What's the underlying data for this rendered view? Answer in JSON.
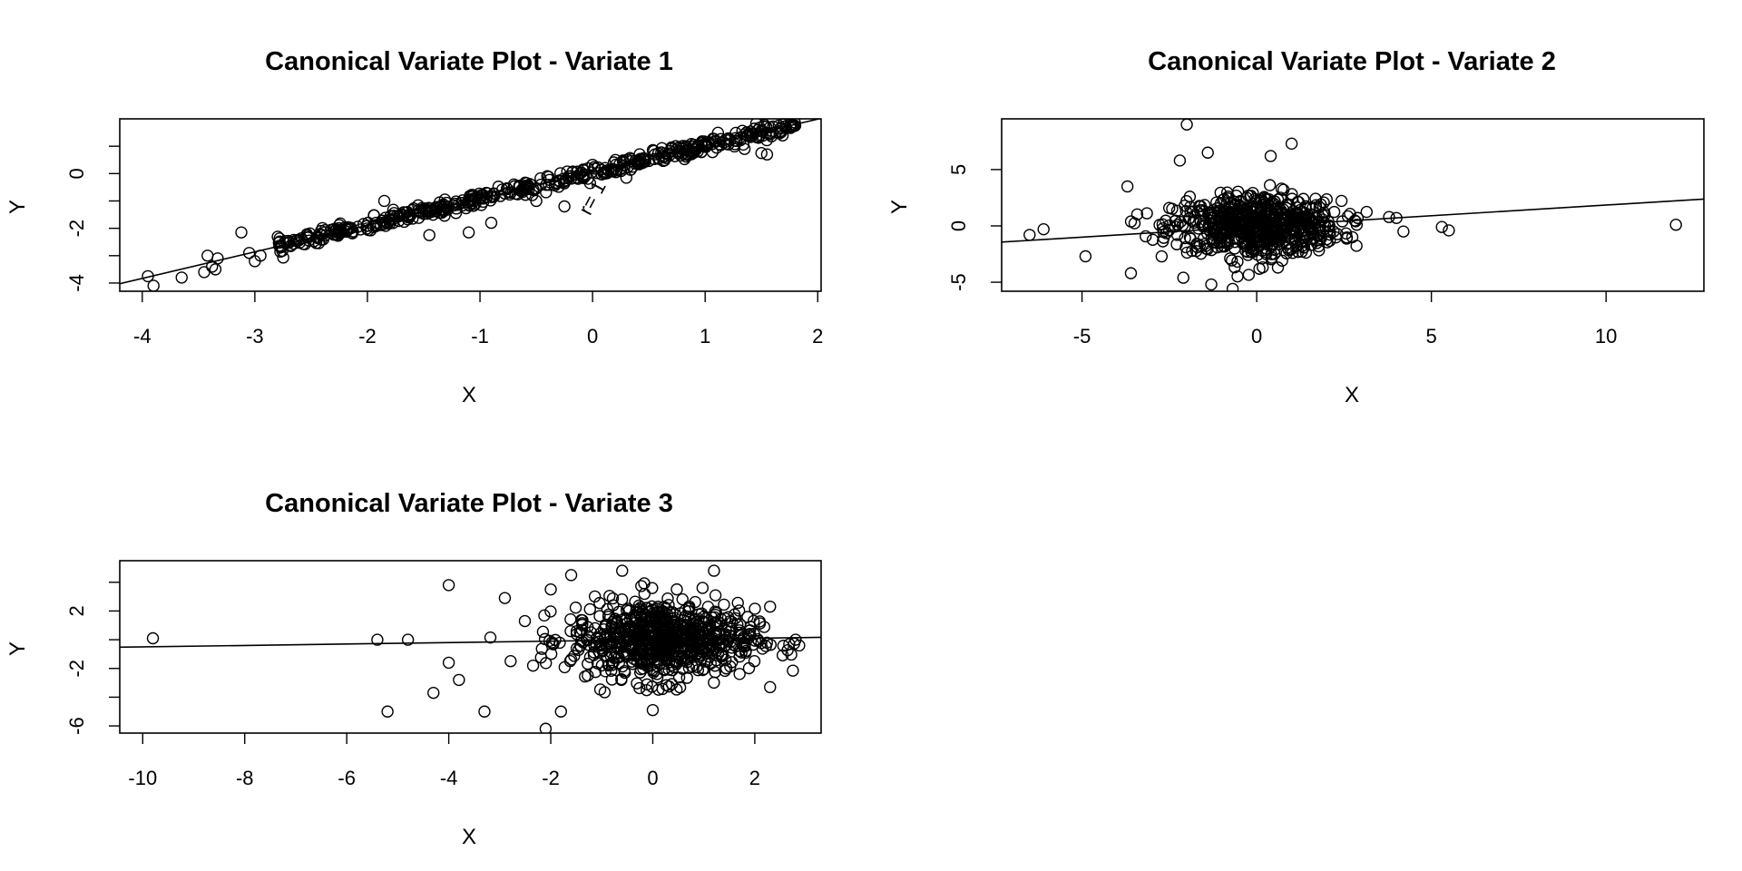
{
  "chart_data": [
    {
      "type": "scatter",
      "title": "Canonical Variate Plot - Variate 1",
      "xlabel": "X",
      "ylabel": "Y",
      "xlim": [
        -4.2,
        2.03
      ],
      "ylim": [
        -4.3,
        2.0
      ],
      "xticks": [
        -4,
        -3,
        -2,
        -1,
        0,
        1,
        2
      ],
      "xtick_labels": [
        "-4",
        "-3",
        "-2",
        "-1",
        "0",
        "1",
        "2"
      ],
      "yticks": [
        -4,
        -3,
        -2,
        -1,
        0,
        1
      ],
      "ytick_labels": [
        "-4",
        "",
        "-2",
        "",
        "0",
        ""
      ],
      "fit_line": {
        "slope": 0.97,
        "intercept": 0.05
      },
      "annotation": {
        "text": "r= 1",
        "x": 0.05,
        "y": -1.0,
        "angle": -62
      },
      "cloud": {
        "x_range": [
          -2.8,
          1.8
        ],
        "slope": 0.97,
        "intercept": 0.05,
        "spread": 0.13,
        "count": 520
      },
      "points": [
        {
          "x": -3.95,
          "y": -3.75
        },
        {
          "x": -3.9,
          "y": -4.1
        },
        {
          "x": -3.65,
          "y": -3.8
        },
        {
          "x": -3.45,
          "y": -3.6
        },
        {
          "x": -3.42,
          "y": -3.0
        },
        {
          "x": -3.38,
          "y": -3.4
        },
        {
          "x": -3.35,
          "y": -3.5
        },
        {
          "x": -3.33,
          "y": -3.1
        },
        {
          "x": -3.12,
          "y": -2.15
        },
        {
          "x": -3.05,
          "y": -2.9
        },
        {
          "x": -3.0,
          "y": -3.2
        },
        {
          "x": -2.95,
          "y": -3.0
        },
        {
          "x": -1.85,
          "y": -1.0
        },
        {
          "x": -1.45,
          "y": -2.25
        },
        {
          "x": -1.1,
          "y": -2.15
        },
        {
          "x": -0.9,
          "y": -1.8
        },
        {
          "x": -0.5,
          "y": -1.0
        },
        {
          "x": -0.25,
          "y": -1.2
        },
        {
          "x": 0.3,
          "y": -0.15
        },
        {
          "x": 1.35,
          "y": 0.9
        },
        {
          "x": 1.5,
          "y": 0.75
        },
        {
          "x": 1.55,
          "y": 0.7
        },
        {
          "x": 1.8,
          "y": 1.75
        },
        {
          "x": 1.77,
          "y": 1.7
        }
      ]
    },
    {
      "type": "scatter",
      "title": "Canonical Variate Plot - Variate 2",
      "xlabel": "X",
      "ylabel": "Y",
      "xlim": [
        -7.3,
        12.8
      ],
      "ylim": [
        -5.8,
        9.5
      ],
      "xticks": [
        -5,
        0,
        5,
        10
      ],
      "xtick_labels": [
        "-5",
        "0",
        "5",
        "10"
      ],
      "yticks": [
        -5,
        0,
        5
      ],
      "ytick_labels": [
        "-5",
        "0",
        "5"
      ],
      "fit_line": {
        "slope": 0.19,
        "intercept": -0.05
      },
      "cloud": {
        "x_center": 0.0,
        "y_center": 0.0,
        "x_sd": 1.2,
        "y_sd": 1.6,
        "count": 650
      },
      "points": [
        {
          "x": -6.5,
          "y": -0.8
        },
        {
          "x": -6.1,
          "y": -0.3
        },
        {
          "x": -4.9,
          "y": -2.7
        },
        {
          "x": -3.7,
          "y": 3.5
        },
        {
          "x": -3.6,
          "y": -4.2
        },
        {
          "x": -2.0,
          "y": 9.0
        },
        {
          "x": -2.2,
          "y": 5.8
        },
        {
          "x": -1.4,
          "y": 6.5
        },
        {
          "x": 1.0,
          "y": 7.3
        },
        {
          "x": 0.4,
          "y": 6.2
        },
        {
          "x": -1.3,
          "y": -5.2
        },
        {
          "x": -2.1,
          "y": -4.6
        },
        {
          "x": 4.0,
          "y": 0.7
        },
        {
          "x": 4.2,
          "y": -0.5
        },
        {
          "x": 5.3,
          "y": -0.1
        },
        {
          "x": 5.5,
          "y": -0.4
        },
        {
          "x": 12.0,
          "y": 0.1
        }
      ]
    },
    {
      "type": "scatter",
      "title": "Canonical Variate Plot - Variate 3",
      "xlabel": "X",
      "ylabel": "Y",
      "xlim": [
        -10.45,
        3.3
      ],
      "ylim": [
        -6.5,
        5.5
      ],
      "xticks": [
        -10,
        -8,
        -6,
        -4,
        -2,
        0,
        2
      ],
      "xtick_labels": [
        "-10",
        "-8",
        "-6",
        "-4",
        "-2",
        "0",
        "2"
      ],
      "yticks": [
        -6,
        -4,
        -2,
        0,
        2,
        4
      ],
      "ytick_labels": [
        "-6",
        "",
        "-2",
        "",
        "2",
        ""
      ],
      "fit_line": {
        "slope": 0.05,
        "intercept": 0.0
      },
      "cloud": {
        "x_center": 0.2,
        "y_center": 0.0,
        "x_sd": 0.9,
        "y_sd": 1.5,
        "count": 750
      },
      "points": [
        {
          "x": -9.8,
          "y": 0.1
        },
        {
          "x": -5.4,
          "y": 0.0
        },
        {
          "x": -5.2,
          "y": -5.0
        },
        {
          "x": -4.8,
          "y": 0.0
        },
        {
          "x": -4.3,
          "y": -3.7
        },
        {
          "x": -4.0,
          "y": 3.8
        },
        {
          "x": -4.0,
          "y": -1.6
        },
        {
          "x": -3.8,
          "y": -2.8
        },
        {
          "x": -3.3,
          "y": -5.0
        },
        {
          "x": -2.9,
          "y": 2.9
        },
        {
          "x": -2.0,
          "y": 3.5
        },
        {
          "x": -1.6,
          "y": 4.5
        },
        {
          "x": -2.1,
          "y": -6.2
        },
        {
          "x": -1.8,
          "y": -5.0
        },
        {
          "x": -0.6,
          "y": 4.8
        },
        {
          "x": 1.2,
          "y": 4.8
        },
        {
          "x": 2.3,
          "y": 2.3
        },
        {
          "x": 2.3,
          "y": -3.3
        },
        {
          "x": 2.8,
          "y": 0.0
        },
        {
          "x": 0.0,
          "y": -4.9
        }
      ]
    }
  ]
}
